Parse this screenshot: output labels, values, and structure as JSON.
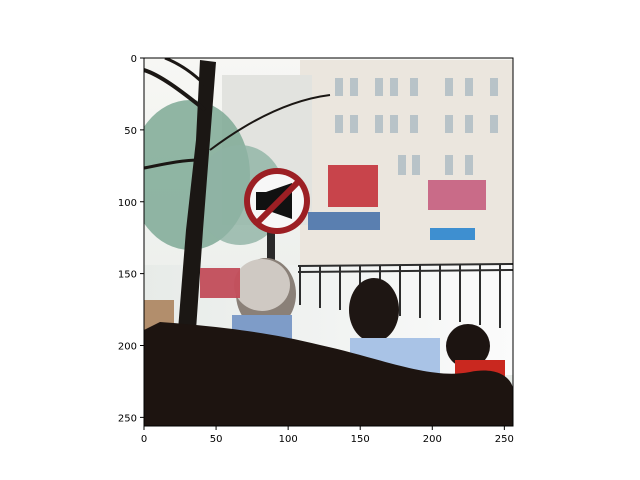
{
  "chart_data": {
    "type": "image",
    "title": "",
    "xlabel": "",
    "ylabel": "",
    "xlim": [
      0,
      256
    ],
    "ylim": [
      256,
      0
    ],
    "xticks": [
      0,
      50,
      100,
      150,
      200,
      250
    ],
    "yticks": [
      0,
      50,
      100,
      150,
      200,
      250
    ],
    "xtick_labels": [
      "0",
      "50",
      "100",
      "150",
      "200",
      "250"
    ],
    "ytick_labels": [
      "0",
      "50",
      "100",
      "150",
      "200",
      "250"
    ],
    "grid": false,
    "image_content": "street-scene-no-horn-sign",
    "colors": {
      "sky": "#eef0ee",
      "building": "#e9e4dc",
      "tree": "#6f9a86",
      "road": "#f2f2f2",
      "sign_ring": "#9c1f24",
      "sign_face": "#f7f7f7",
      "foreground_dark": "#1d1410",
      "shirt_blue": "#9fb7dc",
      "shirt_red": "#c9281f"
    }
  }
}
